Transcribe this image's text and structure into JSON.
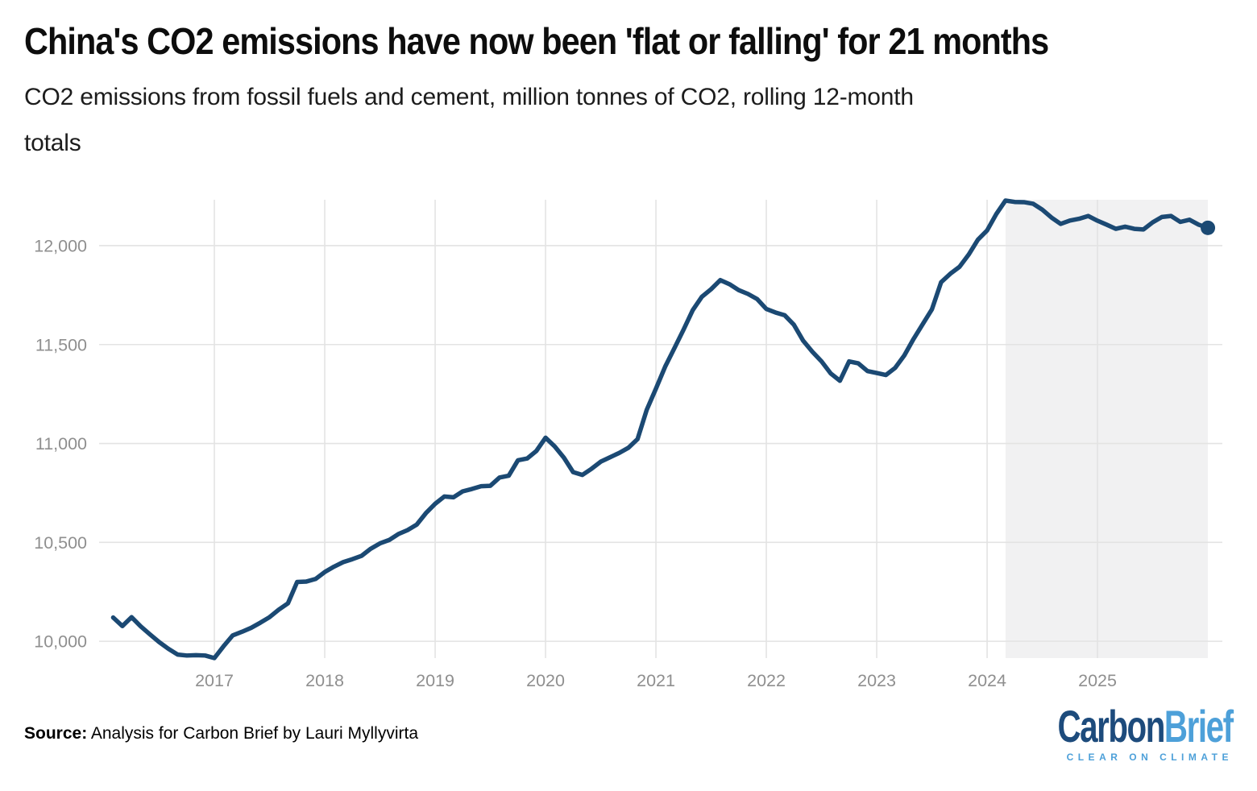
{
  "title": "China's CO2 emissions have now been 'flat or falling' for 21 months",
  "subtitle": {
    "line1": "CO2 emissions from fossil fuels and cement, million tonnes of CO2, rolling 12-month",
    "line2": "totals"
  },
  "source": {
    "label": "Source:",
    "text": " Analysis for Carbon Brief by Lauri Myllyvirta"
  },
  "logo": {
    "part1": "Carbon",
    "part2": "Brief",
    "tagline": "CLEAR ON CLIMATE"
  },
  "colors": {
    "line": "#1b4973",
    "grid": "#e3e3e3",
    "highlight_band": "#f1f1f2",
    "axis_text": "#8f8f8f",
    "logo_dark": "#1d4b7c",
    "logo_light": "#4da0d9",
    "background": "#ffffff"
  },
  "chart_data": {
    "type": "line",
    "title": "China's CO2 emissions have now been 'flat or falling' for 21 months",
    "ylabel": "million tonnes of CO2, rolling 12-month totals",
    "xlabel": "",
    "grid": "on",
    "legend": "none",
    "frequency": "monthly",
    "start_month": "2016-01",
    "end_month": "2025-12",
    "x_ticks": [
      2017,
      2018,
      2019,
      2020,
      2021,
      2022,
      2023,
      2024,
      2025
    ],
    "y_ticks": [
      10000,
      10500,
      11000,
      11500,
      12000
    ],
    "xlim": [
      2015.956,
      2026.131
    ],
    "ylim": [
      9915,
      12232
    ],
    "highlight_region": {
      "start": "2024-02",
      "end": "2025-12",
      "meaning": "21 months of flat or falling emissions"
    },
    "end_dot": {
      "show": true,
      "value": 12090,
      "radius": 9
    },
    "series": [
      {
        "name": "Rolling 12-month CO2 emissions (Mt)",
        "values": [
          10120,
          10077,
          10122,
          10075,
          10035,
          9996,
          9962,
          9933,
          9928,
          9930,
          9928,
          9915,
          9975,
          10030,
          10048,
          10068,
          10094,
          10122,
          10160,
          10192,
          10300,
          10302,
          10315,
          10350,
          10377,
          10400,
          10415,
          10432,
          10468,
          10495,
          10512,
          10542,
          10562,
          10590,
          10648,
          10695,
          10732,
          10728,
          10758,
          10770,
          10784,
          10786,
          10828,
          10837,
          10915,
          10924,
          10962,
          11029,
          10985,
          10928,
          10855,
          10841,
          10872,
          10908,
          10930,
          10952,
          10978,
          11022,
          11170,
          11277,
          11388,
          11481,
          11575,
          11674,
          11742,
          11780,
          11826,
          11805,
          11775,
          11756,
          11730,
          11680,
          11662,
          11648,
          11600,
          11520,
          11464,
          11415,
          11354,
          11317,
          11415,
          11405,
          11366,
          11356,
          11346,
          11382,
          11445,
          11528,
          11603,
          11678,
          11815,
          11858,
          11893,
          11955,
          12030,
          12077,
          12160,
          12228,
          12221,
          12220,
          12212,
          12182,
          12142,
          12110,
          12127,
          12136,
          12150,
          12126,
          12106,
          12085,
          12096,
          12085,
          12082,
          12118,
          12145,
          12150,
          12120,
          12131,
          12106,
          12090
        ]
      }
    ]
  }
}
